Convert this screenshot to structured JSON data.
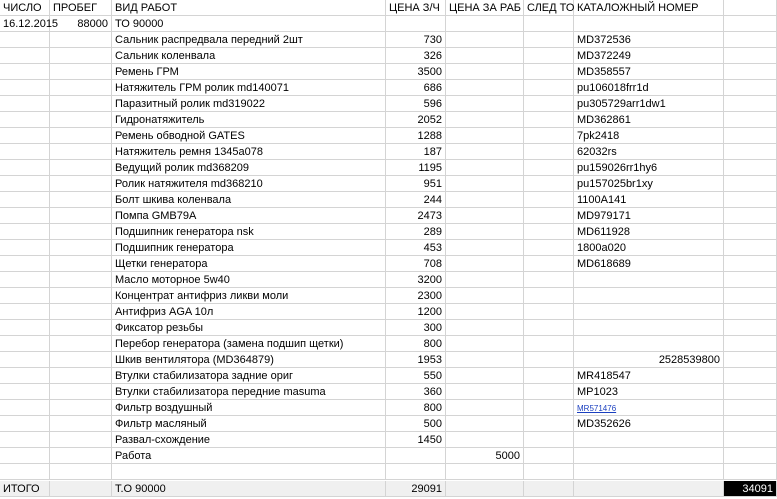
{
  "table": {
    "header": [
      "ЧИСЛО",
      "ПРОБЕГ",
      "ВИД РАБОТ",
      "ЦЕНА З/Ч",
      "ЦЕНА ЗА РАБ",
      "СЛЕД ТО",
      "КАТАЛОЖНЫЙ НОМЕР",
      null
    ],
    "rows": [
      [
        "16.12.2015",
        88000,
        "ТО 90000",
        null,
        null,
        null,
        null,
        null
      ],
      [
        null,
        null,
        "Сальник распредвала передний 2шт",
        730,
        null,
        null,
        "MD372536",
        null
      ],
      [
        null,
        null,
        "Сальник коленвала",
        326,
        null,
        null,
        "MD372249",
        null
      ],
      [
        null,
        null,
        "Ремень ГРМ",
        3500,
        null,
        null,
        "MD358557",
        null
      ],
      [
        null,
        null,
        "Натяжитель ГРМ ролик md140071",
        686,
        null,
        null,
        "pu106018frr1d",
        null
      ],
      [
        null,
        null,
        "Паразитный ролик md319022",
        596,
        null,
        null,
        "pu305729arr1dw1",
        null
      ],
      [
        null,
        null,
        "Гидронатяжитель",
        2052,
        null,
        null,
        "MD362861",
        null
      ],
      [
        null,
        null,
        "Ремень обводной GATES",
        1288,
        null,
        null,
        "7pk2418",
        null
      ],
      [
        null,
        null,
        "Натяжитель ремня 1345a078",
        187,
        null,
        null,
        "62032rs",
        null
      ],
      [
        null,
        null,
        "Ведущий ролик md368209",
        1195,
        null,
        null,
        "pu159026rr1hy6",
        null
      ],
      [
        null,
        null,
        "Ролик натяжителя md368210",
        951,
        null,
        null,
        "pu157025br1xy",
        null
      ],
      [
        null,
        null,
        "Болт шкива коленвала",
        244,
        null,
        null,
        "1100A141",
        null
      ],
      [
        null,
        null,
        "Помпа GMB79A",
        2473,
        null,
        null,
        "MD979171",
        null
      ],
      [
        null,
        null,
        "Подшипник генератора nsk",
        289,
        null,
        null,
        "MD611928",
        null
      ],
      [
        null,
        null,
        "Подшипник генератора",
        453,
        null,
        null,
        "1800a020",
        null
      ],
      [
        null,
        null,
        "Щетки генератора",
        708,
        null,
        null,
        "MD618689",
        null
      ],
      [
        null,
        null,
        "Масло моторное 5w40",
        3200,
        null,
        null,
        null,
        null
      ],
      [
        null,
        null,
        "Концентрат антифриз ликви моли",
        2300,
        null,
        null,
        null,
        null
      ],
      [
        null,
        null,
        "Антифриз AGA 10л",
        1200,
        null,
        null,
        null,
        null
      ],
      [
        null,
        null,
        "Фиксатор резьбы",
        300,
        null,
        null,
        null,
        null
      ],
      [
        null,
        null,
        "Перебор генератора (замена подшип щетки)",
        800,
        null,
        null,
        null,
        null
      ],
      [
        null,
        null,
        "Шкив вентилятора (MD364879)",
        1953,
        null,
        null,
        2528539800,
        null
      ],
      [
        null,
        null,
        "Втулки стабилизатора задние ориг",
        550,
        null,
        null,
        "MR418547",
        null
      ],
      [
        null,
        null,
        "Втулки стабилизатора передние masuma",
        360,
        null,
        null,
        "MP1023",
        null
      ],
      [
        null,
        null,
        "Фильтр воздушный",
        800,
        null,
        null,
        {
          "text": "MR571476",
          "link": true
        },
        null
      ],
      [
        null,
        null,
        "Фильтр масляный",
        500,
        null,
        null,
        "MD352626",
        null
      ],
      [
        null,
        null,
        "Развал-схождение",
        1450,
        null,
        null,
        null,
        null
      ],
      [
        null,
        null,
        "Работа",
        null,
        5000,
        null,
        null,
        null
      ]
    ],
    "total": [
      "ИТОГО",
      null,
      "Т.О 90000",
      29091,
      null,
      null,
      null,
      34091
    ]
  }
}
